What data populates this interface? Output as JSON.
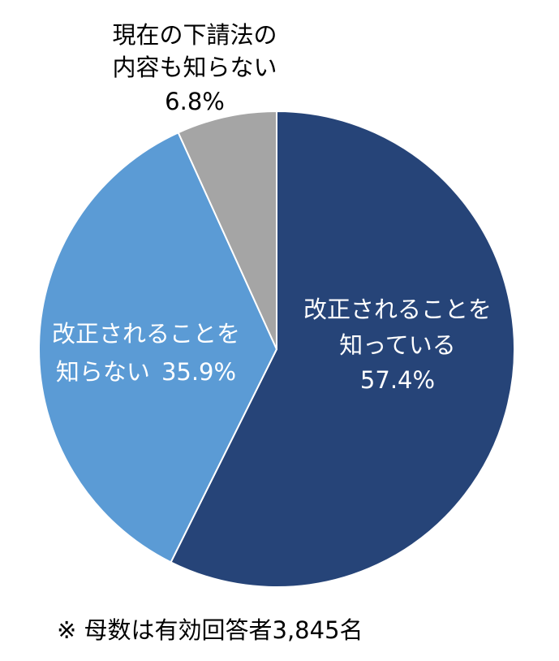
{
  "chart_data": {
    "type": "pie",
    "categories": [
      [
        "改正されることを",
        "知っている"
      ],
      [
        "改正されることを",
        "知らない"
      ],
      [
        "現在の下請法の",
        "内容も知らない"
      ]
    ],
    "values": [
      57.4,
      35.9,
      6.8
    ],
    "value_labels": [
      "57.4%",
      "35.9%",
      "6.8%"
    ],
    "colors": [
      "#264478",
      "#5b9bd5",
      "#a5a5a5"
    ],
    "note": "※ 母数は有効回答者3,845名"
  }
}
